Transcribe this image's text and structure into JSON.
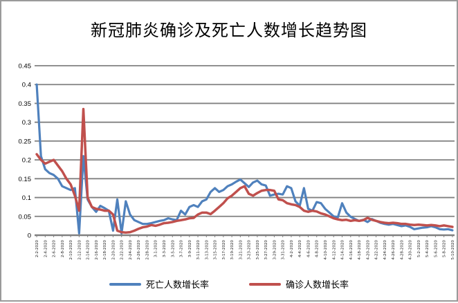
{
  "chart_data": {
    "type": "line",
    "title": "新冠肺炎确诊及死亡人数增长趋势图",
    "xlabel": "",
    "ylabel": "",
    "ylim": [
      0,
      0.45
    ],
    "ytick_step": 0.05,
    "yticks": [
      "0.45",
      "0.4",
      "0.35",
      "0.3",
      "0.25",
      "0.2",
      "0.15",
      "0.1",
      "0.05",
      "0"
    ],
    "grid": true,
    "legend_position": "bottom",
    "xtick_every": 2,
    "x": [
      "2-2-2020",
      "2-3-2020",
      "2-4-2020",
      "2-5-2020",
      "2-6-2020",
      "2-7-2020",
      "2-8-2020",
      "2-9-2020",
      "2-10-2020",
      "2-11-2020",
      "2-12-2020",
      "2-13-2020",
      "2-14-2020",
      "2-15-2020",
      "2-16-2020",
      "2-17-2020",
      "2-18-2020",
      "2-19-2020",
      "2-20-2020",
      "2-21-2020",
      "2-22-2020",
      "2-23-2020",
      "2-24-2020",
      "2-25-2020",
      "2-26-2020",
      "2-27-2020",
      "2-28-2020",
      "2-29-2020",
      "3-1-2020",
      "3-2-2020",
      "3-3-2020",
      "3-4-2020",
      "3-5-2020",
      "3-6-2020",
      "3-7-2020",
      "3-8-2020",
      "3-9-2020",
      "3-10-2020",
      "3-11-2020",
      "3-12-2020",
      "3-13-2020",
      "3-14-2020",
      "3-15-2020",
      "3-16-2020",
      "3-17-2020",
      "3-18-2020",
      "3-19-2020",
      "3-20-2020",
      "3-21-2020",
      "3-22-2020",
      "3-23-2020",
      "3-24-2020",
      "3-25-2020",
      "3-26-2020",
      "3-27-2020",
      "3-28-2020",
      "3-29-2020",
      "3-30-2020",
      "3-31-2020",
      "4-1-2020",
      "4-2-2020",
      "4-3-2020",
      "4-4-2020",
      "4-5-2020",
      "4-6-2020",
      "4-7-2020",
      "4-8-2020",
      "4-9-2020",
      "4-10-2020",
      "4-11-2020",
      "4-12-2020",
      "4-13-2020",
      "4-14-2020",
      "4-15-2020",
      "4-16-2020",
      "4-17-2020",
      "4-18-2020",
      "4-19-2020",
      "4-20-2020",
      "4-21-2020",
      "4-22-2020",
      "4-23-2020",
      "4-24-2020",
      "4-25-2020",
      "4-26-2020",
      "4-27-2020",
      "4-28-2020",
      "4-29-2020",
      "4-30-2020",
      "5-1-2020",
      "5-2-2020",
      "5-3-2020",
      "5-4-2020",
      "5-5-2020",
      "5-6-2020",
      "5-7-2020",
      "5-8-2020",
      "5-9-2020",
      "5-10-2020"
    ],
    "series": [
      {
        "name": "死亡人数增长率",
        "color": "#4F81BD",
        "values": [
          0.4,
          0.21,
          0.175,
          0.165,
          0.16,
          0.15,
          0.13,
          0.125,
          0.12,
          0.125,
          0.005,
          0.21,
          0.095,
          0.075,
          0.062,
          0.078,
          0.072,
          0.065,
          0.012,
          0.095,
          0.005,
          0.09,
          0.055,
          0.04,
          0.035,
          0.03,
          0.03,
          0.032,
          0.035,
          0.038,
          0.04,
          0.045,
          0.042,
          0.04,
          0.065,
          0.055,
          0.075,
          0.08,
          0.075,
          0.09,
          0.095,
          0.115,
          0.125,
          0.115,
          0.12,
          0.13,
          0.135,
          0.142,
          0.148,
          0.138,
          0.128,
          0.14,
          0.145,
          0.135,
          0.132,
          0.105,
          0.108,
          0.11,
          0.108,
          0.13,
          0.125,
          0.09,
          0.078,
          0.125,
          0.07,
          0.065,
          0.088,
          0.085,
          0.07,
          0.06,
          0.05,
          0.048,
          0.085,
          0.06,
          0.049,
          0.043,
          0.038,
          0.041,
          0.035,
          0.043,
          0.038,
          0.033,
          0.03,
          0.028,
          0.03,
          0.027,
          0.024,
          0.026,
          0.022,
          0.016,
          0.018,
          0.02,
          0.021,
          0.024,
          0.021,
          0.016,
          0.015,
          0.016,
          0.013
        ]
      },
      {
        "name": "确诊人数增长率",
        "color": "#C0504D",
        "values": [
          0.215,
          0.2,
          0.19,
          0.195,
          0.2,
          0.185,
          0.17,
          0.15,
          0.135,
          0.105,
          0.065,
          0.335,
          0.1,
          0.075,
          0.07,
          0.068,
          0.065,
          0.065,
          0.055,
          0.012,
          0.008,
          0.007,
          0.008,
          0.012,
          0.017,
          0.021,
          0.023,
          0.027,
          0.025,
          0.028,
          0.032,
          0.033,
          0.035,
          0.038,
          0.04,
          0.042,
          0.045,
          0.046,
          0.055,
          0.06,
          0.06,
          0.056,
          0.065,
          0.075,
          0.085,
          0.098,
          0.105,
          0.115,
          0.125,
          0.13,
          0.11,
          0.105,
          0.112,
          0.118,
          0.12,
          0.12,
          0.118,
          0.095,
          0.093,
          0.085,
          0.082,
          0.08,
          0.075,
          0.065,
          0.062,
          0.065,
          0.063,
          0.058,
          0.055,
          0.05,
          0.045,
          0.042,
          0.04,
          0.041,
          0.038,
          0.04,
          0.038,
          0.04,
          0.046,
          0.041,
          0.038,
          0.035,
          0.033,
          0.032,
          0.033,
          0.032,
          0.03,
          0.03,
          0.028,
          0.027,
          0.028,
          0.027,
          0.026,
          0.027,
          0.026,
          0.024,
          0.026,
          0.024,
          0.022
        ]
      }
    ]
  },
  "colors": {
    "gridline": "#808080",
    "axis": "#808080",
    "frame_border": "#9a9a9a",
    "text": "#000000"
  }
}
